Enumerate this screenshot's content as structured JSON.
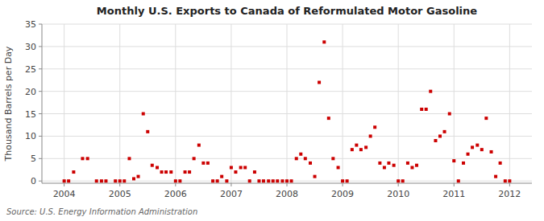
{
  "chart_data": {
    "type": "scatter",
    "title": "Monthly U.S. Exports to Canada of Reformulated Motor Gasoline",
    "ylabel": "Thousand Barrels per Day",
    "annotations": [
      "Source: U.S. Energy Information Administration"
    ],
    "color": "#cc0000",
    "marker": "square",
    "grid": true,
    "xlim": [
      2003.6,
      2012.4
    ],
    "ylim": [
      -0.5,
      35
    ],
    "xticks": [
      2004,
      2005,
      2006,
      2007,
      2008,
      2009,
      2010,
      2011,
      2012
    ],
    "yticks": [
      0,
      5,
      10,
      15,
      20,
      25,
      30,
      35
    ],
    "x": [
      2004.0,
      2004.08,
      2004.17,
      2004.33,
      2004.42,
      2004.58,
      2004.67,
      2004.75,
      2004.92,
      2005.0,
      2005.08,
      2005.17,
      2005.25,
      2005.33,
      2005.42,
      2005.5,
      2005.58,
      2005.67,
      2005.75,
      2005.83,
      2005.92,
      2006.0,
      2006.08,
      2006.17,
      2006.25,
      2006.33,
      2006.42,
      2006.5,
      2006.58,
      2006.67,
      2006.75,
      2006.83,
      2006.92,
      2007.0,
      2007.08,
      2007.17,
      2007.25,
      2007.33,
      2007.42,
      2007.5,
      2007.58,
      2007.67,
      2007.75,
      2007.83,
      2007.92,
      2008.0,
      2008.08,
      2008.17,
      2008.25,
      2008.33,
      2008.42,
      2008.5,
      2008.58,
      2008.67,
      2008.75,
      2008.83,
      2008.92,
      2009.0,
      2009.08,
      2009.17,
      2009.25,
      2009.33,
      2009.42,
      2009.5,
      2009.58,
      2009.67,
      2009.75,
      2009.83,
      2009.92,
      2010.0,
      2010.08,
      2010.17,
      2010.25,
      2010.33,
      2010.42,
      2010.5,
      2010.58,
      2010.67,
      2010.75,
      2010.83,
      2010.92,
      2011.0,
      2011.08,
      2011.17,
      2011.25,
      2011.33,
      2011.42,
      2011.5,
      2011.58,
      2011.67,
      2011.75,
      2011.83,
      2011.92,
      2012.0
    ],
    "values": [
      0.0,
      0.0,
      2.0,
      5.0,
      5.0,
      0.0,
      0.0,
      0.0,
      0.0,
      0.0,
      0.0,
      5.0,
      0.5,
      1.0,
      15.0,
      11.0,
      3.5,
      3.0,
      2.0,
      2.0,
      2.0,
      0.0,
      0.0,
      2.0,
      2.0,
      5.0,
      8.0,
      4.0,
      4.0,
      0.0,
      0.0,
      1.0,
      0.0,
      3.0,
      2.0,
      3.0,
      3.0,
      0.0,
      2.0,
      0.0,
      0.0,
      0.0,
      0.0,
      0.0,
      0.0,
      0.0,
      0.0,
      5.0,
      6.0,
      5.0,
      4.0,
      1.0,
      22.0,
      31.0,
      14.0,
      5.0,
      3.0,
      0.0,
      0.0,
      7.0,
      8.0,
      7.0,
      7.5,
      10.0,
      12.0,
      4.0,
      3.0,
      4.0,
      3.5,
      0.0,
      0.0,
      4.0,
      3.0,
      3.5,
      16.0,
      16.0,
      20.0,
      9.0,
      10.0,
      11.0,
      15.0,
      4.5,
      0.0,
      4.0,
      6.0,
      7.5,
      8.0,
      7.0,
      14.0,
      6.5,
      1.0,
      4.0,
      0.0,
      0.0
    ]
  }
}
